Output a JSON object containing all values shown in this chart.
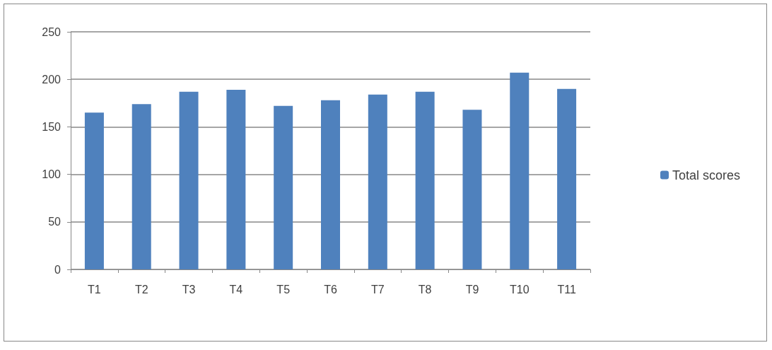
{
  "chart_data": {
    "type": "bar",
    "categories": [
      "T1",
      "T2",
      "T3",
      "T4",
      "T5",
      "T6",
      "T7",
      "T8",
      "T9",
      "T10",
      "T11"
    ],
    "series": [
      {
        "name": "Total scores",
        "color": "#4f81bd",
        "values": [
          165,
          174,
          187,
          189,
          172,
          178,
          184,
          187,
          168,
          207,
          190
        ]
      }
    ],
    "ylim": [
      0,
      250
    ],
    "yticks": [
      0,
      50,
      100,
      150,
      200,
      250
    ],
    "grid": "y",
    "legend": "right"
  }
}
